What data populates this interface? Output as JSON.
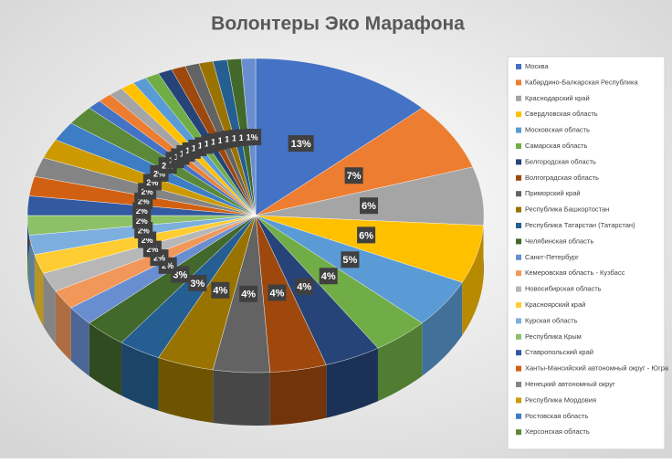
{
  "chart_data": {
    "type": "pie",
    "title": "Волонтеры Эко Марафона",
    "categories": [
      "Москва",
      "Кабардино-Балкарская Республика",
      "Краснодарский край",
      "Свердловская область",
      "Московская область",
      "Самарская область",
      "Белгородская область",
      "Волгоградская область",
      "Приморский край",
      "Республика Башкортостан",
      "Республика Татарстан (Татарстан)",
      "Челябинская область",
      "Санкт-Петербург",
      "Кемеровская область - Кузбасс",
      "Новосибирская область",
      "Красноярский край",
      "Курская область",
      "Республика Крым",
      "Ставропольский край",
      "Ханты-Мансийский автономный округ - Югра",
      "Ненецкий автономный округ",
      "Республика Мордовия",
      "Ростовская область",
      "Херсонская область",
      null,
      null,
      null,
      null,
      null,
      null,
      null,
      null,
      null,
      null,
      null,
      null,
      null
    ],
    "values": [
      13,
      7,
      6,
      6,
      5,
      4,
      4,
      4,
      4,
      4,
      3,
      3,
      2,
      2,
      2,
      2,
      2,
      2,
      2,
      2,
      2,
      2,
      2,
      2,
      1,
      1,
      1,
      1,
      1,
      1,
      1,
      1,
      1,
      1,
      1,
      1,
      1
    ],
    "value_labels": [
      "13%",
      "7%",
      "6%",
      "6%",
      "5%",
      "4%",
      "4%",
      "4%",
      "4%",
      "4%",
      "3%",
      "3%",
      "2%",
      "2%",
      "2%",
      "2%",
      "2%",
      "2%",
      "2%",
      "2%",
      "2%",
      "2%",
      "2%",
      "2%",
      "1%",
      "1%",
      "1%",
      "1%",
      "1%",
      "1%",
      "1%",
      "1%",
      "1%",
      "1%",
      "1%",
      "1%",
      "1%"
    ],
    "colors": [
      "#4472C4",
      "#ED7D31",
      "#A5A5A5",
      "#FFC000",
      "#5B9BD5",
      "#70AD47",
      "#264478",
      "#9E480E",
      "#636363",
      "#997300",
      "#255E91",
      "#43682B",
      "#698ED0",
      "#F1975A",
      "#B7B7B7",
      "#FFCD33",
      "#7CAFDD",
      "#8CC168",
      "#335AA1",
      "#D26012",
      "#848484",
      "#CC9A00",
      "#3C7DC4",
      "#5A8A39"
    ],
    "legend": "right"
  }
}
